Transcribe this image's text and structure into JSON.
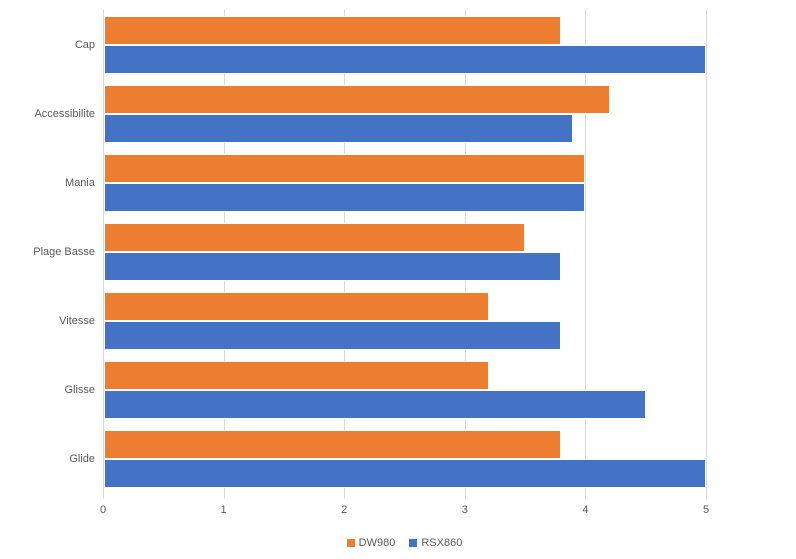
{
  "chart_data": {
    "type": "bar",
    "orientation": "horizontal",
    "title": "",
    "xlabel": "",
    "ylabel": "",
    "categories": [
      "Cap",
      "Accessibilite",
      "Mania",
      "Plage Basse",
      "Vitesse",
      "Glisse",
      "Glide"
    ],
    "series": [
      {
        "name": "DW980",
        "color": "#ED7D31",
        "values": [
          3.8,
          4.2,
          4.0,
          3.5,
          3.2,
          3.2,
          3.8
        ]
      },
      {
        "name": "RSX860",
        "color": "#4472C4",
        "values": [
          5.0,
          3.9,
          4.0,
          3.8,
          3.8,
          4.5,
          5.0
        ]
      }
    ],
    "xlim": [
      0,
      5
    ],
    "xticks": [
      "0",
      "1",
      "2",
      "3",
      "4",
      "5"
    ],
    "grid": "vertical-major",
    "legend_position": "bottom-center",
    "colors": {
      "background": "#FFFFFF",
      "gridline": "#D9D9D9",
      "axis_text": "#595959"
    }
  }
}
